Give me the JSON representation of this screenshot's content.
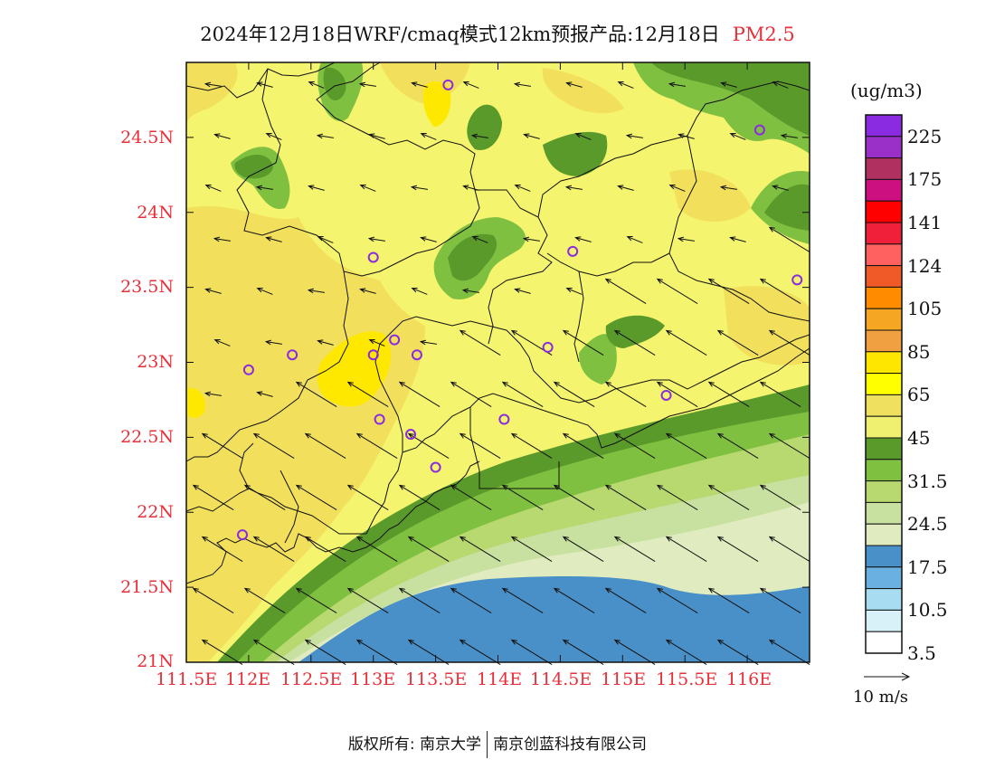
{
  "title": {
    "main": "2024年12月18日WRF/cmaq模式12km预报产品:12月18日",
    "product": "PM2.5"
  },
  "map": {
    "lat_labels": [
      "24.5N",
      "24N",
      "23.5N",
      "23N",
      "22.5N",
      "22N",
      "21.5N",
      "21N"
    ],
    "lat_values": [
      24.5,
      24,
      23.5,
      23,
      22.5,
      22,
      21.5,
      21
    ],
    "lon_labels": [
      "111.5E",
      "112E",
      "112.5E",
      "113E",
      "113.5E",
      "114E",
      "114.5E",
      "115E",
      "115.5E",
      "116E"
    ],
    "lon_values": [
      111.5,
      112,
      112.5,
      113,
      113.5,
      114,
      114.5,
      115,
      115.5,
      116
    ],
    "lat_range": [
      21,
      25
    ],
    "lon_range": [
      111.5,
      116.5
    ],
    "station_markers": "purple-circle-icon",
    "wind_vectors": "wind-arrow-icon"
  },
  "colorbar": {
    "unit": "(ug/m3)",
    "labels": [
      "225",
      "175",
      "141",
      "124",
      "105",
      "85",
      "65",
      "45",
      "31.5",
      "24.5",
      "17.5",
      "10.5",
      "3.5"
    ],
    "colors_top_to_bottom": [
      "#8a2be2",
      "#9b30c8",
      "#b03060",
      "#cc1080",
      "#ff0000",
      "#f0203a",
      "#ff6060",
      "#f05a28",
      "#ff8c00",
      "#f5a623",
      "#f0a040",
      "#ffe600",
      "#ffff00",
      "#f0e060",
      "#f0f070",
      "#5a9a2a",
      "#80c040",
      "#b8d870",
      "#c8e0a0",
      "#e0ecc0",
      "#4a90c8",
      "#6ab0e0",
      "#a8dcf0",
      "#d8f0f8",
      "#ffffff"
    ]
  },
  "wind_legend": {
    "label": "10 m/s"
  },
  "footer": {
    "left": "版权所有: 南京大学",
    "right": "南京创蓝科技有限公司"
  }
}
